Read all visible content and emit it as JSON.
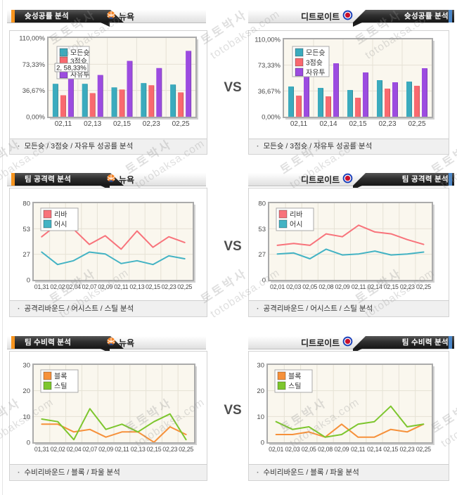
{
  "page": {
    "vs_label": "VS"
  },
  "watermark": {
    "line1": "토토박사",
    "line2": "totobaksa.com"
  },
  "panels": [
    {
      "title": "슛성공률 분석",
      "team": "뉴욕",
      "caption": "모든슛 / 3점슛 / 자유투 성공률 분석",
      "tooltip": "2, 58,33%"
    },
    {
      "title": "슛성공률 분석",
      "team": "디트로이트",
      "caption": "모든슛 / 3점슛 / 자유투 성공률 분석"
    },
    {
      "title": "팀 공격력 분석",
      "team": "뉴욕",
      "caption": "공격리바운드 / 어시스트 / 스틸 분석"
    },
    {
      "title": "팀 공격력 분석",
      "team": "디트로이트",
      "caption": "공격리바운드 / 어시스트 / 스틸 분석"
    },
    {
      "title": "팀 수비력 분석",
      "team": "뉴욕",
      "caption": "수비리바운드 / 블록 / 파울 분석"
    },
    {
      "title": "팀 수비력 분석",
      "team": "디트로이트",
      "caption": "수비리바운드 / 블록 / 파울 분석"
    }
  ],
  "chart_data": [
    {
      "type": "bar",
      "title": "뉴욕 슛성공률",
      "ylim": [
        0,
        110
      ],
      "yticks": [
        "0,00%",
        "36,67%",
        "73,33%",
        "110,00%"
      ],
      "categories": [
        "02,11",
        "02,13",
        "02,15",
        "02,23",
        "02,25"
      ],
      "series": [
        {
          "name": "모든슛",
          "color": "#3babbe",
          "values": [
            46,
            46,
            41,
            47,
            45
          ]
        },
        {
          "name": "3점슛",
          "color": "#f9696f",
          "values": [
            30,
            33,
            38,
            44,
            34
          ]
        },
        {
          "name": "자유투",
          "color": "#9c4ce0",
          "values": [
            60,
            58.33,
            78,
            68,
            92
          ]
        }
      ],
      "tooltip": "2, 58,33%"
    },
    {
      "type": "bar",
      "title": "디트로이트 슛성공률",
      "ylim": [
        0,
        110
      ],
      "yticks": [
        "0,00%",
        "36,67%",
        "73,33%",
        "110,00%"
      ],
      "categories": [
        "02,11",
        "02,14",
        "02,15",
        "02,23",
        "02,25"
      ],
      "series": [
        {
          "name": "모든슛",
          "color": "#3babbe",
          "values": [
            43,
            41,
            38,
            52,
            50
          ]
        },
        {
          "name": "3점슛",
          "color": "#f9696f",
          "values": [
            30,
            29,
            27,
            40,
            44
          ]
        },
        {
          "name": "자유투",
          "color": "#9c4ce0",
          "values": [
            58,
            76,
            63,
            49,
            69
          ]
        }
      ]
    },
    {
      "type": "line",
      "title": "뉴욕 팀 공격력",
      "ylim": [
        0,
        80
      ],
      "yticks": [
        "0",
        "27",
        "53",
        "80"
      ],
      "categories": [
        "01,31",
        "02,02",
        "02,04",
        "02,07",
        "02,09",
        "02,11",
        "02,13",
        "02,15",
        "02,23",
        "02,25"
      ],
      "series": [
        {
          "name": "리바",
          "color": "#f8737b",
          "values": [
            45,
            58,
            53,
            37,
            46,
            32,
            51,
            34,
            45,
            39
          ]
        },
        {
          "name": "어시",
          "color": "#43b3c4",
          "values": [
            29,
            16,
            20,
            29,
            27,
            17,
            20,
            16,
            25,
            22
          ]
        }
      ]
    },
    {
      "type": "line",
      "title": "디트로이트 팀 공격력",
      "ylim": [
        0,
        80
      ],
      "yticks": [
        "0",
        "27",
        "53",
        "80"
      ],
      "categories": [
        "02,01",
        "02,03",
        "02,05",
        "02,08",
        "02,09",
        "02,11",
        "02,14",
        "02,15",
        "02,23",
        "02,25"
      ],
      "series": [
        {
          "name": "리바",
          "color": "#f8737b",
          "values": [
            36,
            38,
            36,
            48,
            45,
            57,
            50,
            48,
            42,
            37
          ]
        },
        {
          "name": "어시",
          "color": "#43b3c4",
          "values": [
            27,
            28,
            22,
            32,
            26,
            27,
            30,
            26,
            27,
            29
          ]
        }
      ]
    },
    {
      "type": "line",
      "title": "뉴욕 팀 수비력",
      "ylim": [
        0,
        30
      ],
      "yticks": [
        "0",
        "10",
        "20",
        "30"
      ],
      "categories": [
        "01,31",
        "02,02",
        "02,04",
        "02,07",
        "02,09",
        "02,11",
        "02,13",
        "02,15",
        "02,23",
        "02,25"
      ],
      "series": [
        {
          "name": "블록",
          "color": "#f6913b",
          "values": [
            7,
            7,
            4,
            5,
            2,
            4,
            4,
            0,
            6,
            3
          ]
        },
        {
          "name": "스틸",
          "color": "#7dc62e",
          "values": [
            9,
            8,
            1,
            13,
            5,
            7,
            4,
            8,
            11,
            1
          ]
        }
      ]
    },
    {
      "type": "line",
      "title": "디트로이트 팀 수비력",
      "ylim": [
        0,
        30
      ],
      "yticks": [
        "0",
        "10",
        "20",
        "30"
      ],
      "categories": [
        "02,01",
        "02,03",
        "02,05",
        "02,08",
        "02,09",
        "02,11",
        "02,14",
        "02,15",
        "02,23",
        "02,25"
      ],
      "series": [
        {
          "name": "블록",
          "color": "#f6913b",
          "values": [
            3,
            3,
            4,
            2,
            7,
            2,
            2,
            5,
            4,
            7
          ]
        },
        {
          "name": "스틸",
          "color": "#7dc62e",
          "values": [
            8,
            5,
            6,
            2,
            3,
            7,
            8,
            14,
            6,
            7
          ]
        }
      ]
    }
  ]
}
